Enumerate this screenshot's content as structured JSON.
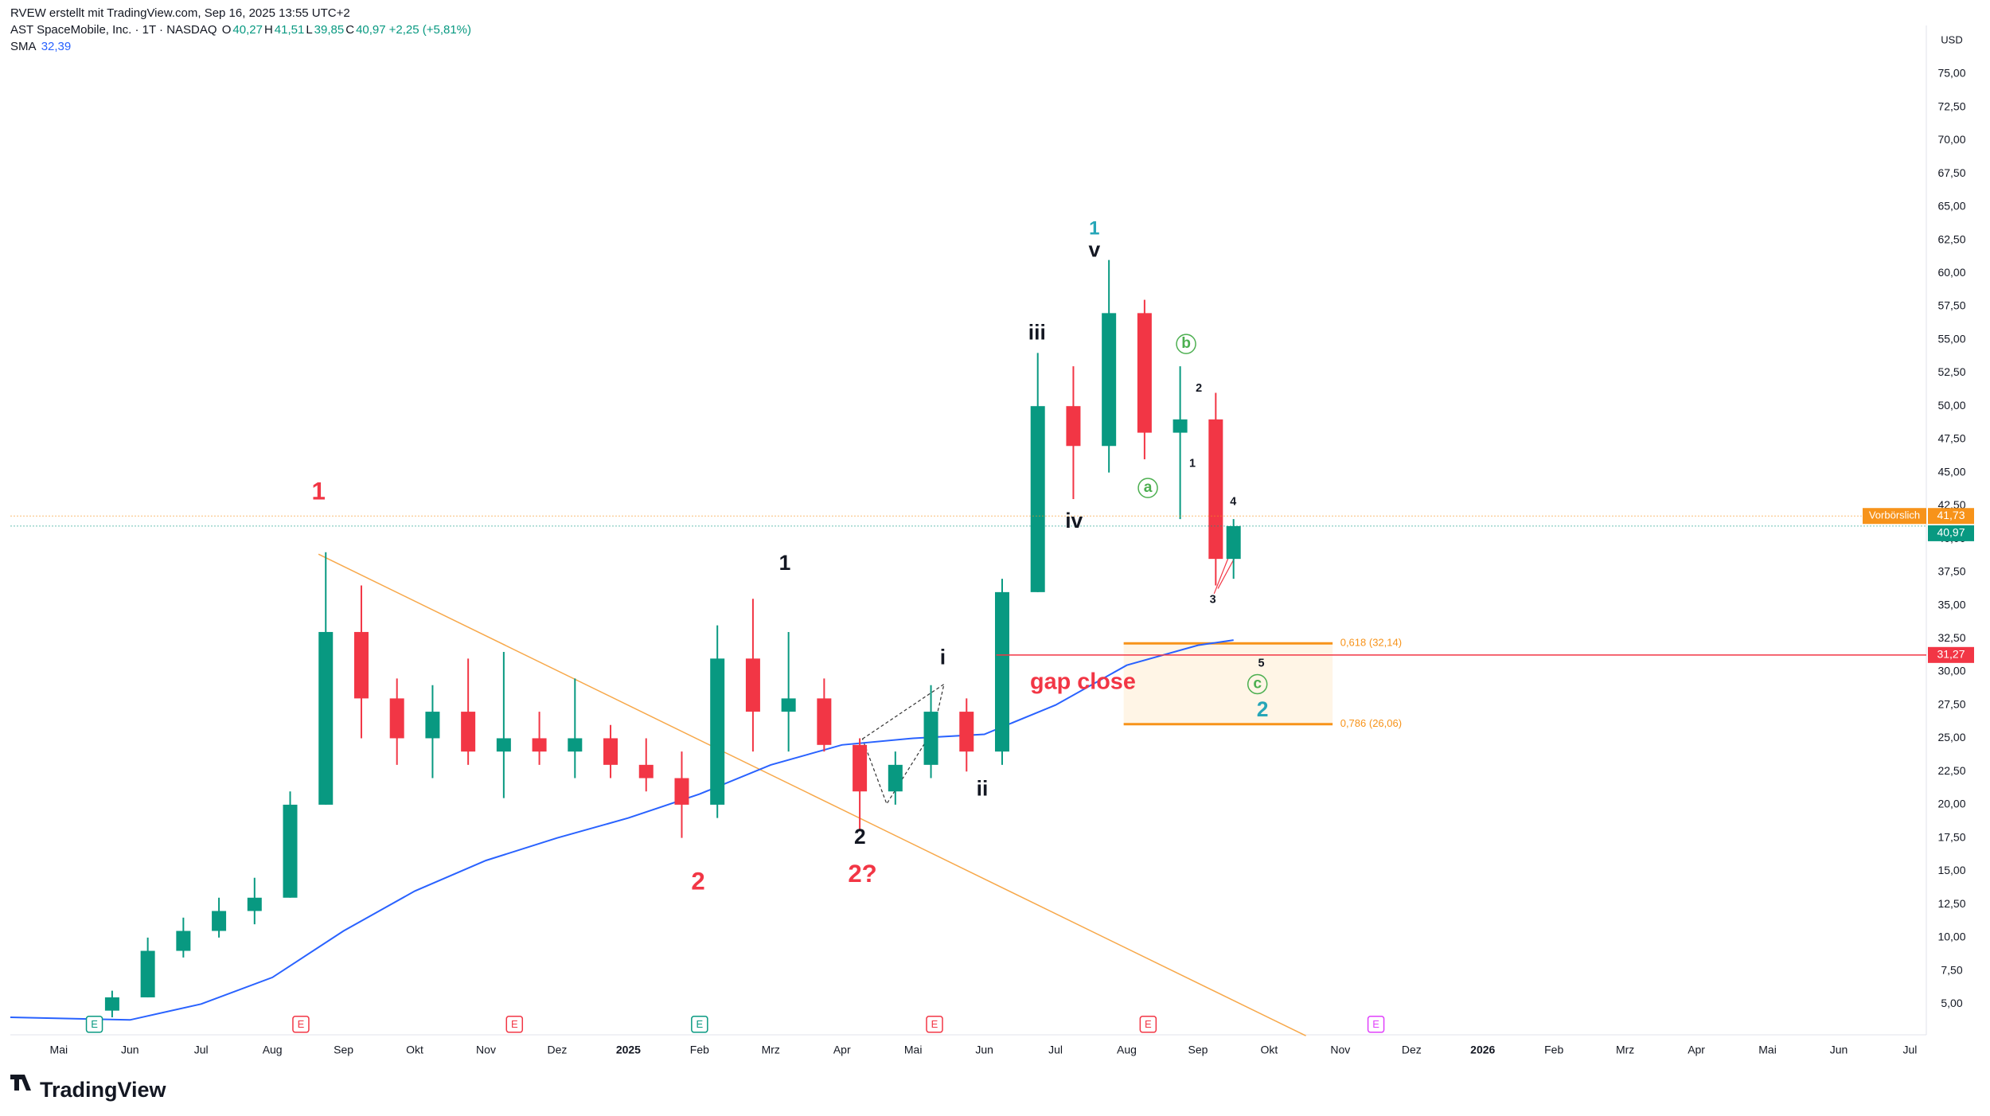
{
  "chart_data": {
    "type": "candlestick",
    "credit": "RVEW erstellt mit TradingView.com, Sep 16, 2025 13:55 UTC+2",
    "symbol": "AST SpaceMobile, Inc. · 1T · NASDAQ",
    "ohlc_legend": [
      {
        "key": "O",
        "text": "40,27"
      },
      {
        "key": "H",
        "text": "41,51"
      },
      {
        "key": "L",
        "text": "39,85"
      },
      {
        "key": "C",
        "text": "40,97"
      }
    ],
    "change": "+2,25 (+5,81%)",
    "currency": "USD",
    "up_color": "#089981",
    "down_color": "#f23645",
    "x": [
      0.75,
      1.25,
      1.75,
      2.25,
      2.75,
      3.25,
      3.75,
      4.25,
      4.75,
      5.25,
      5.75,
      6.25,
      6.75,
      7.25,
      7.75,
      8.25,
      8.75,
      9.25,
      9.75,
      10.25,
      10.75,
      11.25,
      11.75,
      12.25,
      12.75,
      13.25,
      13.75,
      14.25,
      14.75,
      15.25,
      15.75,
      16.25,
      16.5
    ],
    "open": [
      4.5,
      5.5,
      9,
      10.5,
      12,
      13,
      20,
      33,
      28,
      25,
      27,
      24,
      25,
      24,
      25,
      23,
      22,
      20,
      31,
      27,
      28,
      24.5,
      21,
      23,
      27,
      24,
      36,
      50,
      47,
      57,
      48,
      49,
      38.5
    ],
    "high": [
      6,
      10,
      11.5,
      13,
      14.5,
      21,
      39,
      36.5,
      29.5,
      29,
      31,
      31.5,
      27,
      29.5,
      26,
      25,
      24,
      33.5,
      35.5,
      33,
      29.5,
      25,
      24,
      29,
      28,
      37,
      54,
      53,
      61,
      58,
      53,
      51,
      41.5
    ],
    "low": [
      4,
      5.5,
      8.5,
      10,
      11,
      13,
      20,
      25,
      23,
      22,
      23,
      20.5,
      23,
      22,
      22,
      21,
      17.5,
      19,
      24,
      24,
      24,
      18,
      20,
      22,
      22.5,
      23,
      36,
      43,
      45,
      46,
      41.5,
      36.5,
      37
    ],
    "close": [
      5.5,
      9,
      10.5,
      12,
      13,
      20,
      33,
      28,
      25,
      27,
      24,
      25,
      24,
      25,
      23,
      22,
      20,
      31,
      27,
      28,
      24.5,
      21,
      23,
      27,
      24,
      36,
      50,
      47,
      57,
      48,
      49,
      38.5,
      40.97
    ],
    "sma": {
      "name": "SMA",
      "value_label": "32,39",
      "color": "#2962ff",
      "x": [
        -0.68,
        1,
        2,
        3,
        4,
        5,
        6,
        7,
        8,
        9,
        10,
        11,
        12,
        13,
        14,
        15,
        16,
        16.5
      ],
      "values": [
        4,
        3.8,
        5,
        7,
        10.5,
        13.5,
        15.8,
        17.5,
        19,
        20.8,
        23,
        24.5,
        25,
        25.3,
        27.5,
        30.5,
        32,
        32.39
      ]
    },
    "xlim": [
      -0.68,
      26.23
    ],
    "xticks": [
      {
        "value": 0,
        "label": "Mai"
      },
      {
        "value": 1,
        "label": "Jun"
      },
      {
        "value": 2,
        "label": "Jul"
      },
      {
        "value": 3,
        "label": "Aug"
      },
      {
        "value": 4,
        "label": "Sep"
      },
      {
        "value": 5,
        "label": "Okt"
      },
      {
        "value": 6,
        "label": "Nov"
      },
      {
        "value": 7,
        "label": "Dez"
      },
      {
        "value": 8,
        "label": "2025"
      },
      {
        "value": 9,
        "label": "Feb"
      },
      {
        "value": 10,
        "label": "Mrz"
      },
      {
        "value": 11,
        "label": "Apr"
      },
      {
        "value": 12,
        "label": "Mai"
      },
      {
        "value": 13,
        "label": "Jun"
      },
      {
        "value": 14,
        "label": "Jul"
      },
      {
        "value": 15,
        "label": "Aug"
      },
      {
        "value": 16,
        "label": "Sep"
      },
      {
        "value": 17,
        "label": "Okt"
      },
      {
        "value": 18,
        "label": "Nov"
      },
      {
        "value": 19,
        "label": "Dez"
      },
      {
        "value": 20,
        "label": "2026"
      },
      {
        "value": 21,
        "label": "Feb"
      },
      {
        "value": 22,
        "label": "Mrz"
      },
      {
        "value": 23,
        "label": "Apr"
      },
      {
        "value": 24,
        "label": "Mai"
      },
      {
        "value": 25,
        "label": "Jun"
      },
      {
        "value": 26,
        "label": "Jul"
      }
    ],
    "ylim": [
      3.1,
      78.65
    ],
    "yticks": [
      {
        "value": 5,
        "label": "5,00"
      },
      {
        "value": 7.5,
        "label": "7,50"
      },
      {
        "value": 10,
        "label": "10,00"
      },
      {
        "value": 12.5,
        "label": "12,50"
      },
      {
        "value": 15,
        "label": "15,00"
      },
      {
        "value": 17.5,
        "label": "17,50"
      },
      {
        "value": 20,
        "label": "20,00"
      },
      {
        "value": 22.5,
        "label": "22,50"
      },
      {
        "value": 25,
        "label": "25,00"
      },
      {
        "value": 27.5,
        "label": "27,50"
      },
      {
        "value": 30,
        "label": "30,00"
      },
      {
        "value": 32.5,
        "label": "32,50"
      },
      {
        "value": 35,
        "label": "35,00"
      },
      {
        "value": 37.5,
        "label": "37,50"
      },
      {
        "value": 40,
        "label": "40,00"
      },
      {
        "value": 42.5,
        "label": "42,50"
      },
      {
        "value": 45,
        "label": "45,00"
      },
      {
        "value": 47.5,
        "label": "47,50"
      },
      {
        "value": 50,
        "label": "50,00"
      },
      {
        "value": 52.5,
        "label": "52,50"
      },
      {
        "value": 55,
        "label": "55,00"
      },
      {
        "value": 57.5,
        "label": "57,50"
      },
      {
        "value": 60,
        "label": "60,00"
      },
      {
        "value": 62.5,
        "label": "62,50"
      },
      {
        "value": 65,
        "label": "65,00"
      },
      {
        "value": 67.5,
        "label": "67,50"
      },
      {
        "value": 70,
        "label": "70,00"
      },
      {
        "value": 72.5,
        "label": "72,50"
      },
      {
        "value": 75,
        "label": "75,00"
      }
    ],
    "grid": false,
    "price_tags": [
      {
        "label": "Vorbörslich",
        "value": 41.73,
        "text": "41,73",
        "color": "#f7931a"
      },
      {
        "value": 40.97,
        "text": "40,97",
        "color": "#089981"
      },
      {
        "value": 31.27,
        "text": "31,27",
        "color": "#f23645"
      }
    ],
    "fib_levels": [
      {
        "value": 32.14,
        "label": "0,618 (32,14)"
      },
      {
        "value": 26.06,
        "label": "0,786 (26,06)"
      }
    ],
    "annotations": [
      {
        "text": "1",
        "color": "#f23645"
      },
      {
        "text": "2",
        "color": "#f23645"
      },
      {
        "text": "1",
        "color": "#131722"
      },
      {
        "text": "2",
        "color": "#131722"
      },
      {
        "text": "2?",
        "color": "#f23645"
      },
      {
        "text": "i",
        "color": "#131722"
      },
      {
        "text": "ii",
        "color": "#131722"
      },
      {
        "text": "iii",
        "color": "#131722"
      },
      {
        "text": "iv",
        "color": "#131722"
      },
      {
        "text": "v",
        "color": "#131722"
      },
      {
        "text": "1",
        "color": "#26a6b8"
      },
      {
        "text": "a",
        "color": "#4caf50"
      },
      {
        "text": "b",
        "color": "#4caf50"
      },
      {
        "text": "2",
        "color": "#131722"
      },
      {
        "text": "1",
        "color": "#131722"
      },
      {
        "text": "3",
        "color": "#131722"
      },
      {
        "text": "4",
        "color": "#131722"
      },
      {
        "text": "5",
        "color": "#131722"
      },
      {
        "text": "c",
        "color": "#4caf50"
      },
      {
        "text": "2",
        "color": "#26a6b8"
      },
      {
        "text": "gap close",
        "color": "#f23645"
      }
    ],
    "earnings_label": "E",
    "brand": "TradingView"
  }
}
